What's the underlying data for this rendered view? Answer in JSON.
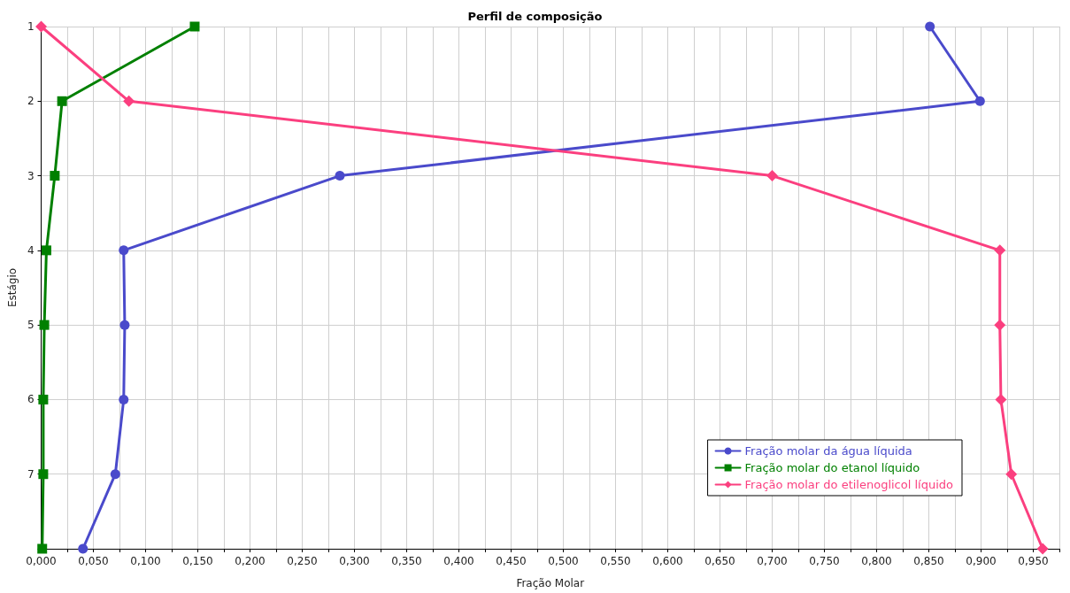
{
  "chart_data": {
    "type": "line",
    "title": "Perfil de composição",
    "xlabel": "Fração Molar",
    "ylabel": "Estágio",
    "xlim": [
      0,
      0.975
    ],
    "xticks": [
      {
        "value": 0,
        "label": "0,000"
      },
      {
        "value": 0.025,
        "label": null
      },
      {
        "value": 0.05,
        "label": "0,050"
      },
      {
        "value": 0.075,
        "label": null
      },
      {
        "value": 0.1,
        "label": "0,100"
      },
      {
        "value": 0.125,
        "label": null
      },
      {
        "value": 0.15,
        "label": "0,150"
      },
      {
        "value": 0.175,
        "label": null
      },
      {
        "value": 0.2,
        "label": "0,200"
      },
      {
        "value": 0.225,
        "label": null
      },
      {
        "value": 0.25,
        "label": "0,250"
      },
      {
        "value": 0.275,
        "label": null
      },
      {
        "value": 0.3,
        "label": "0,300"
      },
      {
        "value": 0.325,
        "label": null
      },
      {
        "value": 0.35,
        "label": "0,350"
      },
      {
        "value": 0.375,
        "label": null
      },
      {
        "value": 0.4,
        "label": "0,400"
      },
      {
        "value": 0.425,
        "label": null
      },
      {
        "value": 0.45,
        "label": "0,450"
      },
      {
        "value": 0.475,
        "label": null
      },
      {
        "value": 0.5,
        "label": "0,500"
      },
      {
        "value": 0.525,
        "label": null
      },
      {
        "value": 0.55,
        "label": "0,550"
      },
      {
        "value": 0.575,
        "label": null
      },
      {
        "value": 0.6,
        "label": "0,600"
      },
      {
        "value": 0.625,
        "label": null
      },
      {
        "value": 0.65,
        "label": "0,650"
      },
      {
        "value": 0.675,
        "label": null
      },
      {
        "value": 0.7,
        "label": "0,700"
      },
      {
        "value": 0.725,
        "label": null
      },
      {
        "value": 0.75,
        "label": "0,750"
      },
      {
        "value": 0.775,
        "label": null
      },
      {
        "value": 0.8,
        "label": "0,800"
      },
      {
        "value": 0.825,
        "label": null
      },
      {
        "value": 0.85,
        "label": "0,850"
      },
      {
        "value": 0.875,
        "label": null
      },
      {
        "value": 0.9,
        "label": "0,900"
      },
      {
        "value": 0.925,
        "label": null
      },
      {
        "value": 0.95,
        "label": "0,950"
      },
      {
        "value": 0.975,
        "label": null
      }
    ],
    "ylim": [
      8,
      1
    ],
    "yticks": [
      1,
      2,
      3,
      4,
      5,
      6,
      7,
      {
        "value": 8,
        "label": null
      }
    ],
    "grid": true,
    "legend": "bottom right",
    "line_style": "solid",
    "series": [
      {
        "name": "Fração molar da água líquida",
        "color": "#4a4acb",
        "marker": "circle",
        "x": [
          0.851,
          0.899,
          0.286,
          0.079,
          0.08,
          0.079,
          0.071,
          0.04
        ],
        "values": [
          1,
          2,
          3,
          4,
          5,
          6,
          7,
          8
        ]
      },
      {
        "name": "Fração molar do etanol líquido",
        "color": "#008000",
        "marker": "square",
        "x": [
          0.147,
          0.02,
          0.013,
          0.005,
          0.003,
          0.002,
          0.002,
          0.001
        ],
        "values": [
          1,
          2,
          3,
          4,
          5,
          6,
          7,
          8
        ]
      },
      {
        "name": "Fração molar do etilenoglicol líquido",
        "color": "#fb3f7f",
        "marker": "diamond",
        "x": [
          0.0,
          0.084,
          0.7,
          0.918,
          0.918,
          0.919,
          0.929,
          0.959
        ],
        "values": [
          1,
          2,
          3,
          4,
          5,
          6,
          7,
          8
        ]
      }
    ]
  }
}
